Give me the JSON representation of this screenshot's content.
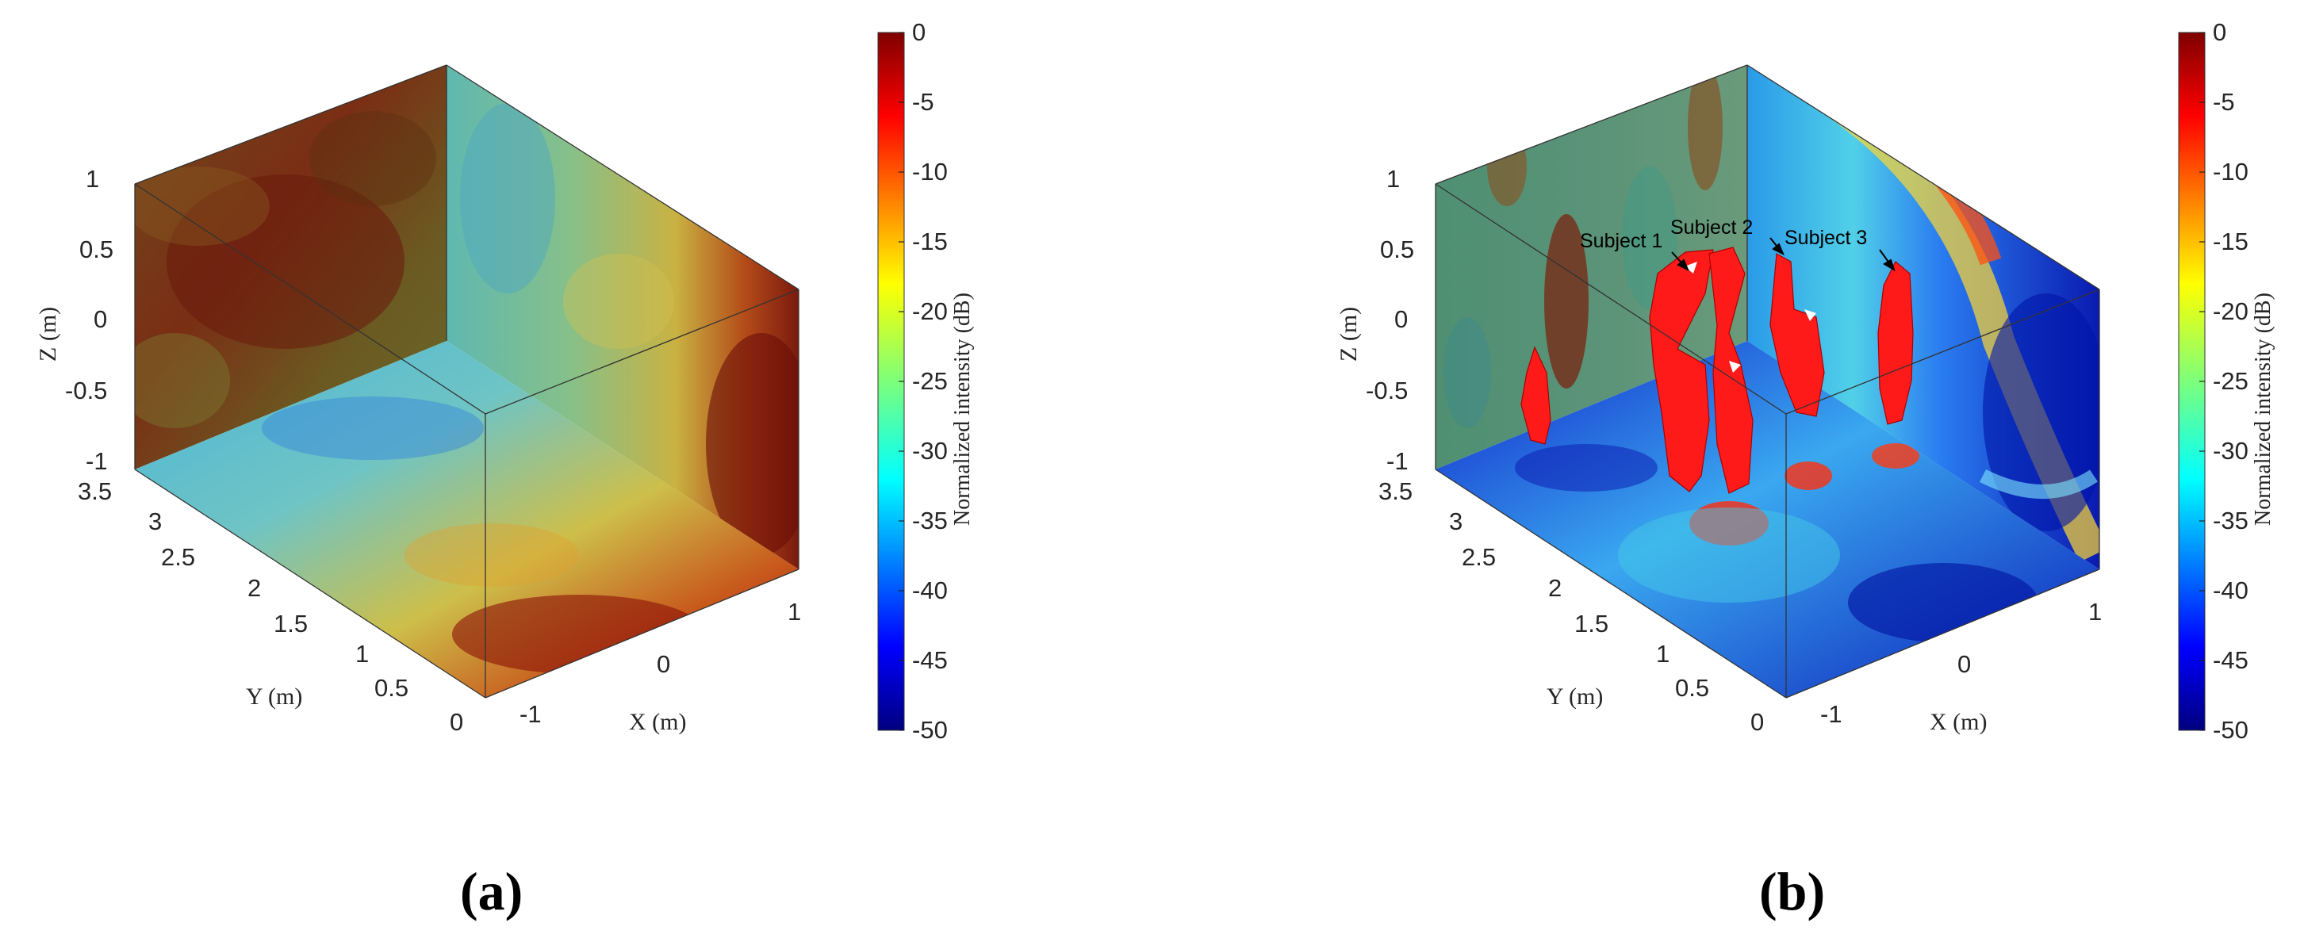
{
  "chart_data": [
    {
      "type": "heatmap",
      "panel_label": "(a)",
      "xlabel": "X (m)",
      "ylabel": "Y (m)",
      "zlabel": "Z (m)",
      "x_ticks": [
        "-1",
        "0",
        "1"
      ],
      "y_ticks": [
        "0",
        "0.5",
        "1",
        "1.5",
        "2",
        "2.5",
        "3",
        "3.5"
      ],
      "z_ticks": [
        "-1",
        "-0.5",
        "0",
        "0.5",
        "1"
      ],
      "xlim": [
        -1.2,
        1.2
      ],
      "ylim": [
        0,
        3.5
      ],
      "zlim": [
        -1,
        1
      ],
      "colorbar": {
        "label": "Normalized intensity (dB)",
        "ticks": [
          "0",
          "-5",
          "-10",
          "-15",
          "-20",
          "-25",
          "-30",
          "-35",
          "-40",
          "-45",
          "-50"
        ],
        "range": [
          -50,
          0
        ]
      },
      "slices": {
        "back_xz": "mostly dark red, about -3 to -8 dB",
        "side_yz": "cyan/yellow on the left, dark red toward the right edge",
        "floor_xy": "cyan/blue at far side, red near front corner"
      }
    },
    {
      "type": "heatmap",
      "panel_label": "(b)",
      "xlabel": "X (m)",
      "ylabel": "Y (m)",
      "zlabel": "Z (m)",
      "x_ticks": [
        "-1",
        "0",
        "1"
      ],
      "y_ticks": [
        "0",
        "0.5",
        "1",
        "1.5",
        "2",
        "2.5",
        "3",
        "3.5"
      ],
      "z_ticks": [
        "-1",
        "-0.5",
        "0",
        "0.5",
        "1"
      ],
      "xlim": [
        -1.2,
        1.2
      ],
      "ylim": [
        0,
        3.5
      ],
      "zlim": [
        -1,
        1
      ],
      "colorbar": {
        "label": "Normalized intensity (dB)",
        "ticks": [
          "0",
          "-5",
          "-10",
          "-15",
          "-20",
          "-25",
          "-30",
          "-35",
          "-40",
          "-45",
          "-50"
        ],
        "range": [
          -50,
          0
        ]
      },
      "annotations": [
        "Subject 1",
        "Subject 2",
        "Subject 3"
      ],
      "isosurface_color": "#ff1a1a",
      "slices": {
        "back_xz": "green/cyan with dark red vertical streaks",
        "side_yz": "blue/cyan with yellow-red arcs, deep blue right",
        "floor_xy": "deep blue with cyan and red hot spots"
      }
    }
  ]
}
